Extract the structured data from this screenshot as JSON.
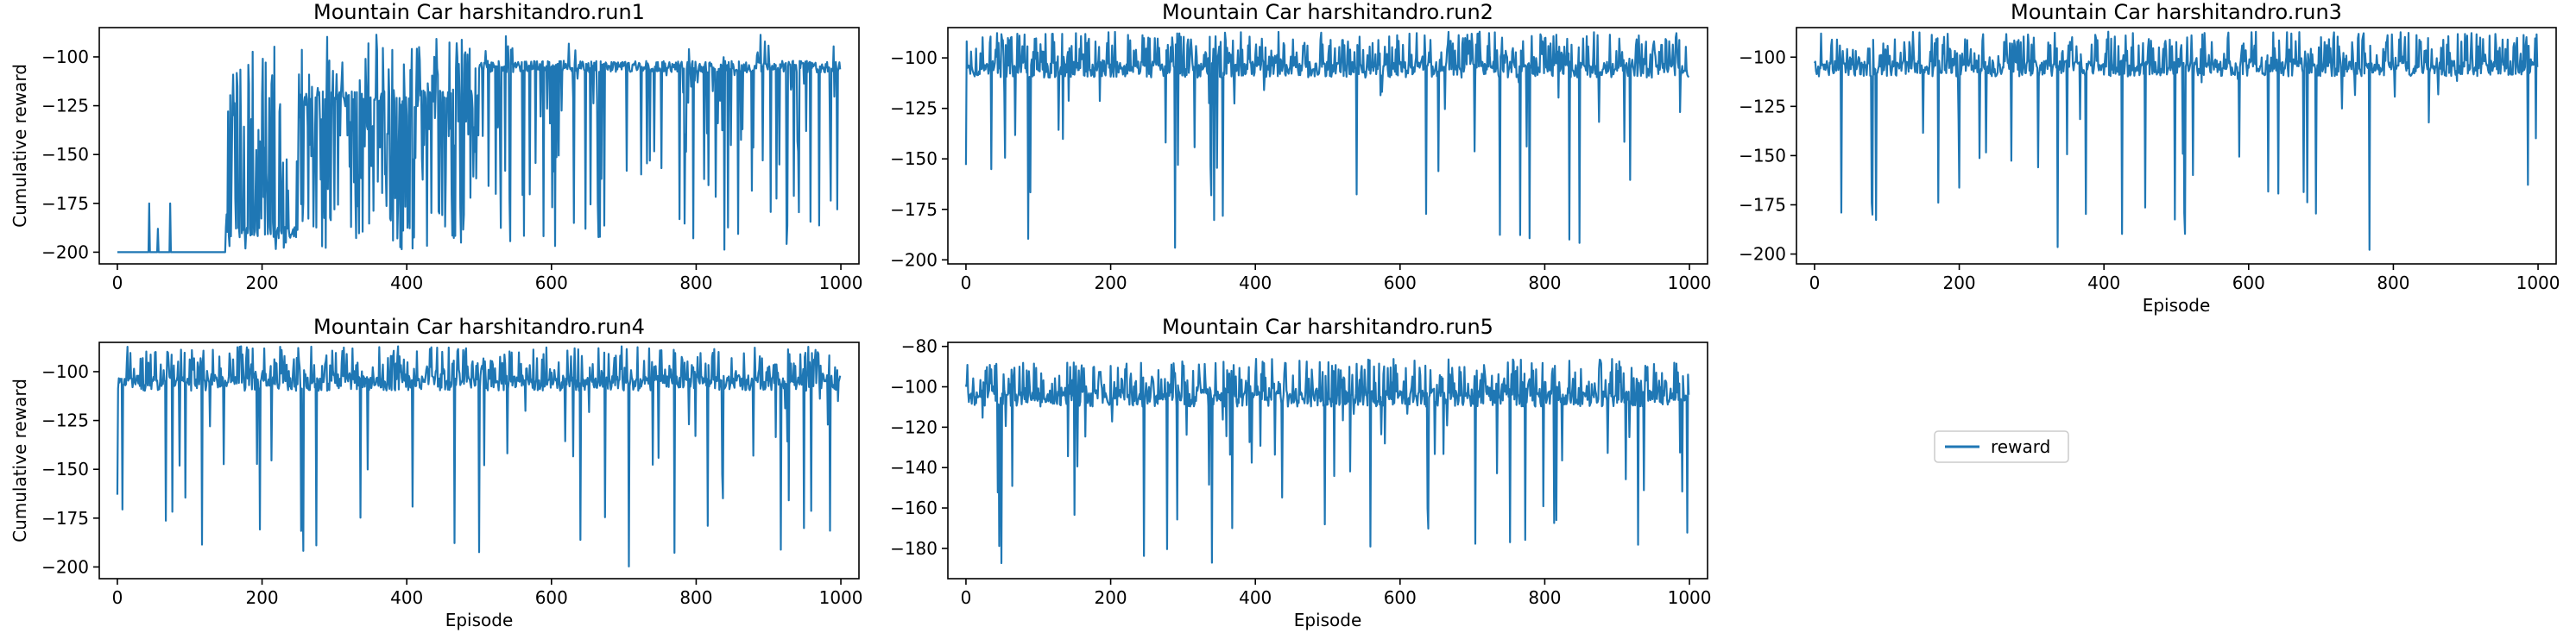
{
  "figure": {
    "legend": {
      "label": "reward",
      "color": "#1f77b4",
      "placement": "lower-right empty panel"
    }
  },
  "chart_data": [
    {
      "type": "line",
      "title": "Mountain Car harshitandro.run1",
      "xlabel": "",
      "ylabel": "Cumulative reward",
      "xlim": [
        -25,
        1025
      ],
      "ylim": [
        -206,
        -85
      ],
      "xticks": [
        0,
        200,
        400,
        600,
        800,
        1000
      ],
      "yticks": [
        -200,
        -175,
        -150,
        -125,
        -100
      ],
      "series": [
        {
          "name": "reward",
          "color": "#1f77b4",
          "profile": {
            "episodes": 1000,
            "phases": [
              {
                "from": 0,
                "to": 150,
                "base": -200,
                "low": -200,
                "high": -200,
                "spike_prob": 0.02,
                "spikes_to": [
                  -175,
                  -188
                ]
              },
              {
                "from": 150,
                "to": 250,
                "base": -190,
                "low": -200,
                "high": -88,
                "spike_prob": 0.6
              },
              {
                "from": 250,
                "to": 500,
                "base": -120,
                "low": -200,
                "high": -87,
                "spike_prob": 0.7
              },
              {
                "from": 500,
                "to": 1000,
                "base": -105,
                "low": -200,
                "high": -87,
                "spike_prob": 0.25
              }
            ]
          }
        }
      ]
    },
    {
      "type": "line",
      "title": "Mountain Car harshitandro.run2",
      "xlabel": "",
      "ylabel": "",
      "xlim": [
        -25,
        1025
      ],
      "ylim": [
        -202,
        -85
      ],
      "xticks": [
        0,
        200,
        400,
        600,
        800,
        1000
      ],
      "yticks": [
        -200,
        -175,
        -150,
        -125,
        -100
      ],
      "series": [
        {
          "name": "reward",
          "color": "#1f77b4",
          "profile": {
            "episodes": 1000,
            "base": -105,
            "high": -87,
            "dip_prob": 0.05,
            "dip_min": -196,
            "start": -153
          }
        }
      ]
    },
    {
      "type": "line",
      "title": "Mountain Car harshitandro.run3",
      "xlabel": "Episode",
      "ylabel": "",
      "xlim": [
        -25,
        1025
      ],
      "ylim": [
        -205,
        -85
      ],
      "xticks": [
        0,
        200,
        400,
        600,
        800,
        1000
      ],
      "yticks": [
        -200,
        -175,
        -150,
        -125,
        -100
      ],
      "series": [
        {
          "name": "reward",
          "color": "#1f77b4",
          "profile": {
            "episodes": 1000,
            "base": -105,
            "high": -87,
            "dip_prob": 0.04,
            "dip_min": -200,
            "start": -103
          }
        }
      ]
    },
    {
      "type": "line",
      "title": "Mountain Car harshitandro.run4",
      "xlabel": "Episode",
      "ylabel": "Cumulative reward",
      "xlim": [
        -25,
        1025
      ],
      "ylim": [
        -206,
        -85
      ],
      "xticks": [
        0,
        200,
        400,
        600,
        800,
        1000
      ],
      "yticks": [
        -200,
        -175,
        -150,
        -125,
        -100
      ],
      "series": [
        {
          "name": "reward",
          "color": "#1f77b4",
          "profile": {
            "episodes": 1000,
            "base": -105,
            "high": -87,
            "dip_prob": 0.06,
            "dip_min": -200,
            "start": -163
          }
        }
      ]
    },
    {
      "type": "line",
      "title": "Mountain Car harshitandro.run5",
      "xlabel": "Episode",
      "ylabel": "",
      "xlim": [
        -25,
        1025
      ],
      "ylim": [
        -195,
        -78
      ],
      "xticks": [
        0,
        200,
        400,
        600,
        800,
        1000
      ],
      "yticks": [
        -180,
        -160,
        -140,
        -120,
        -100,
        -80
      ],
      "series": [
        {
          "name": "reward",
          "color": "#1f77b4",
          "profile": {
            "episodes": 1000,
            "base": -105,
            "high": -86,
            "dip_prob": 0.06,
            "dip_min": -191,
            "start": -100
          }
        }
      ]
    }
  ]
}
